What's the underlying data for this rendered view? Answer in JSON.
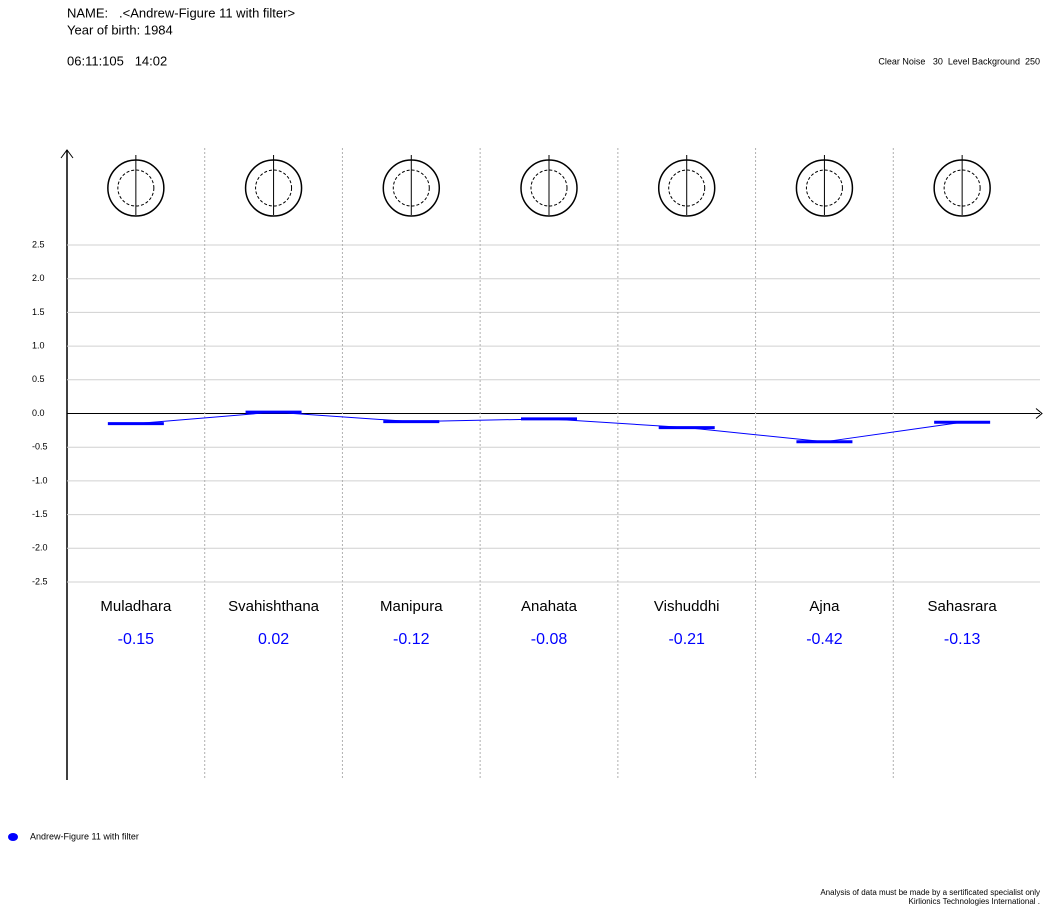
{
  "header": {
    "name": "NAME:   .<Andrew-Figure 11 with filter>",
    "birth": "Year of birth: 1984",
    "time": "06:11:105   14:02",
    "settings": "Clear Noise   30  Level Background  250"
  },
  "chart_data": {
    "type": "line",
    "categories": [
      "Muladhara",
      "Svahishthana",
      "Manipura",
      "Anahata",
      "Vishuddhi",
      "Ajna",
      "Sahasrara"
    ],
    "series": [
      {
        "name": "Andrew-Figure 11 with filter",
        "color": "#0000ff",
        "values": [
          -0.15,
          0.02,
          -0.12,
          -0.08,
          -0.21,
          -0.42,
          -0.13
        ]
      }
    ],
    "ylim": [
      -2.5,
      2.5
    ],
    "yticks": [
      2.5,
      {
        "value": 2,
        "label": "2.0"
      },
      1.5,
      {
        "value": 1,
        "label": "1.0"
      },
      0.5,
      {
        "value": 0,
        "label": "0.0"
      },
      -0.5,
      {
        "value": -1,
        "label": "-1.0"
      },
      -1.5,
      {
        "value": -2,
        "label": "-2.0"
      },
      -2.5
    ],
    "grid": true
  },
  "footer": {
    "line1": "Analysis of data must be made by a sertificated specialist only",
    "line2": "Kirlionics Technologies International ."
  }
}
